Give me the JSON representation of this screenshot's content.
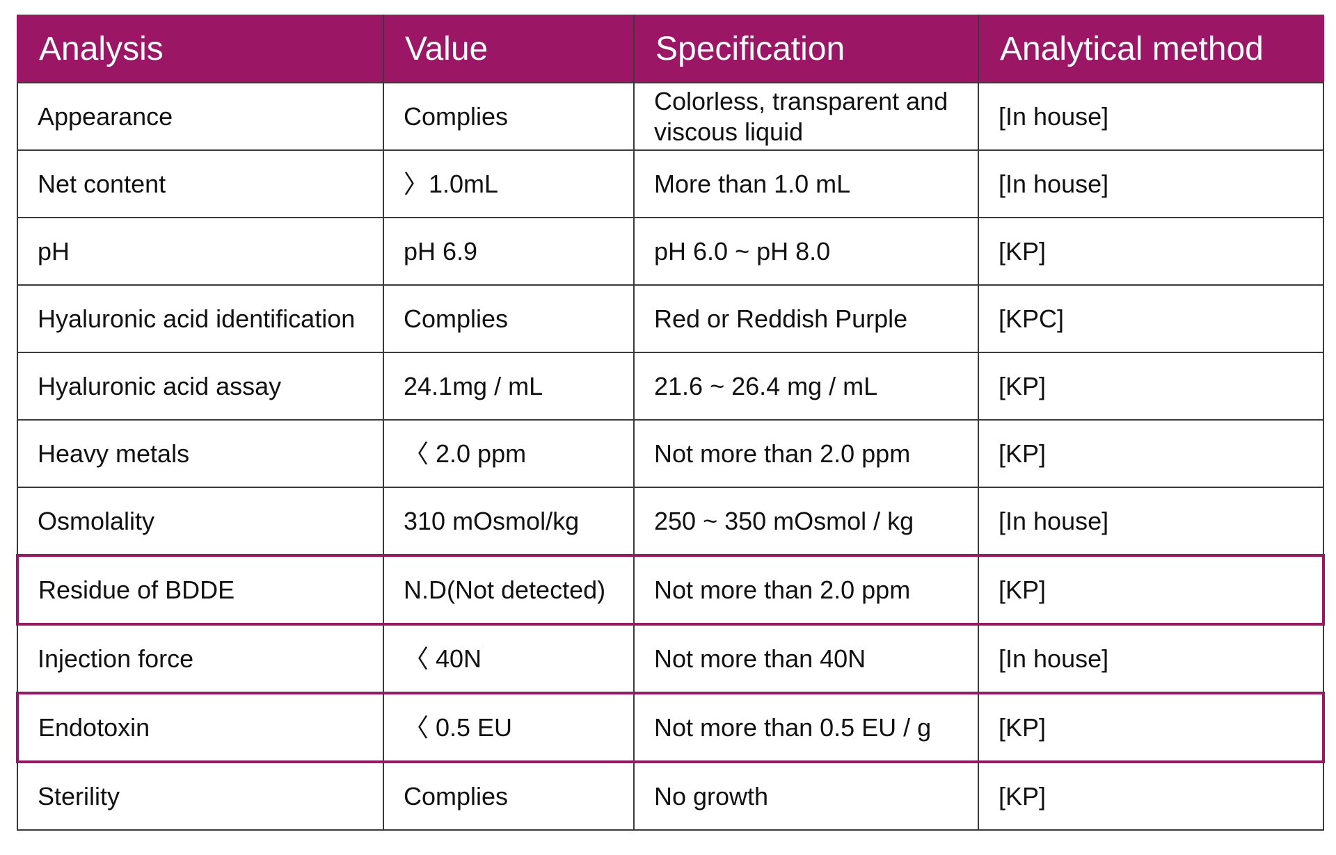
{
  "headers": [
    "Analysis",
    "Value",
    "Specification",
    "Analytical method"
  ],
  "rows": [
    {
      "analysis": "Appearance",
      "value": "Complies",
      "specification": "Colorless, transparent and viscous liquid",
      "method": "[In house]",
      "highlighted": false
    },
    {
      "analysis": "Net content",
      "value": "〉1.0mL",
      "specification": "More than 1.0 mL",
      "method": "[In house]",
      "highlighted": false
    },
    {
      "analysis": "pH",
      "value": "pH 6.9",
      "specification": "pH 6.0 ~ pH 8.0",
      "method": "[KP]",
      "highlighted": false
    },
    {
      "analysis": "Hyaluronic acid identification",
      "value": "Complies",
      "specification": "Red or Reddish Purple",
      "method": "[KPC]",
      "highlighted": false
    },
    {
      "analysis": "Hyaluronic acid assay",
      "value": "24.1mg / mL",
      "specification": "21.6 ~ 26.4 mg / mL",
      "method": "[KP]",
      "highlighted": false
    },
    {
      "analysis": "Heavy metals",
      "value": "〈 2.0 ppm",
      "specification": "Not more than 2.0 ppm",
      "method": "[KP]",
      "highlighted": false
    },
    {
      "analysis": "Osmolality",
      "value": "310 mOsmol/kg",
      "specification": "250 ~ 350 mOsmol / kg",
      "method": "[In house]",
      "highlighted": false
    },
    {
      "analysis": "Residue of BDDE",
      "value": "N.D(Not detected)",
      "specification": "Not more than 2.0 ppm",
      "method": "[KP]",
      "highlighted": true
    },
    {
      "analysis": "Injection force",
      "value": "〈 40N",
      "specification": "Not more than 40N",
      "method": "[In house]",
      "highlighted": false
    },
    {
      "analysis": "Endotoxin",
      "value": "〈 0.5 EU",
      "specification": "Not more than 0.5 EU / g",
      "method": "[KP]",
      "highlighted": true
    },
    {
      "analysis": "Sterility",
      "value": "Complies",
      "specification": "No growth",
      "method": "[KP]",
      "highlighted": false
    }
  ],
  "colors": {
    "header_bg": "#9b1664",
    "header_text": "#ffffff",
    "highlight_border": "#9b1664",
    "grid": "#3a3a3a"
  }
}
